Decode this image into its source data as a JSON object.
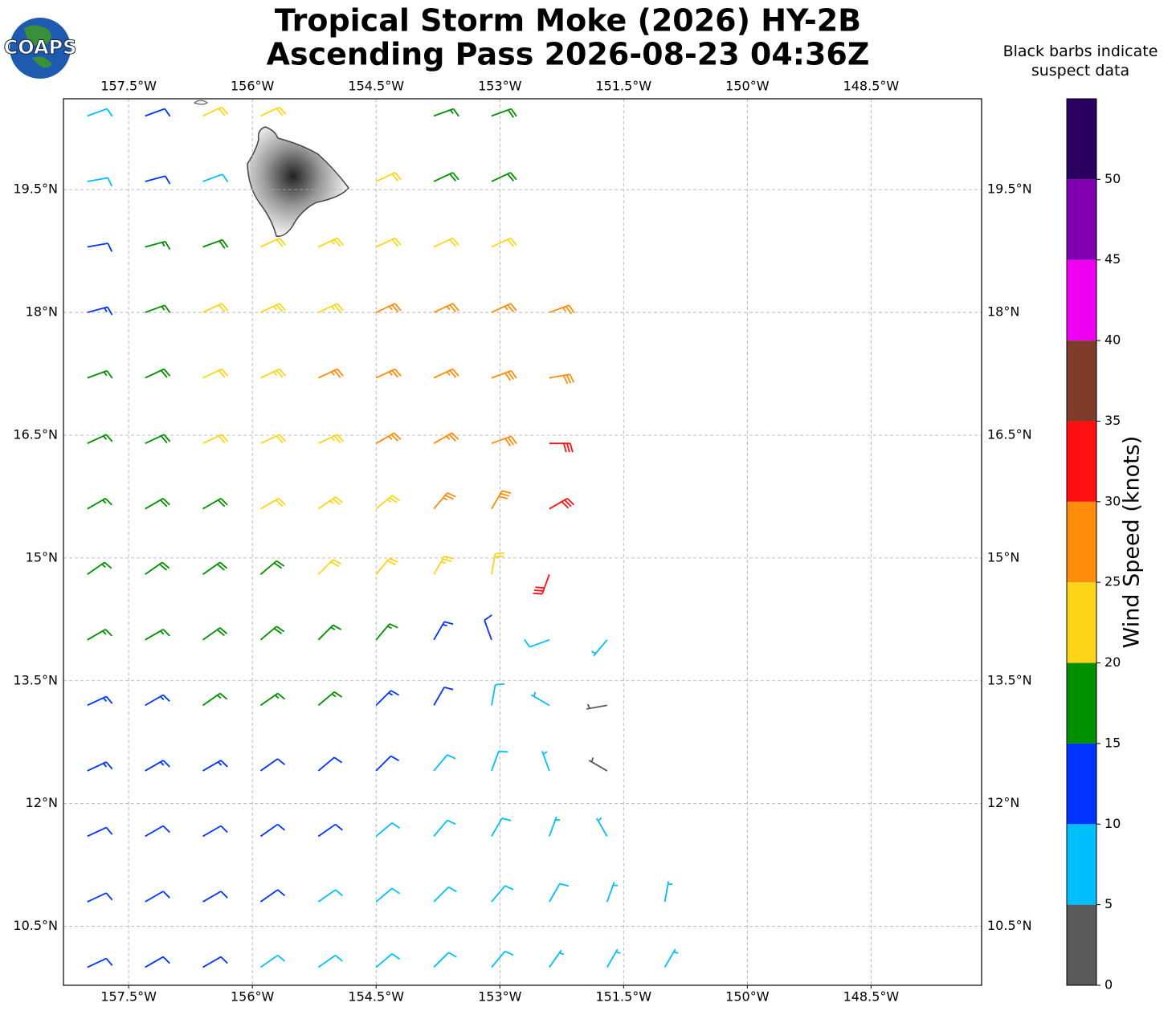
{
  "chart_data": {
    "type": "barbs",
    "title": "Tropical Storm Moke (2026) HY-2B",
    "subtitle": "Ascending Pass 2026-08-23 04:36Z",
    "logo": "COAPS",
    "note": "Black barbs indicate suspect data",
    "xlim": [
      -158.29,
      -147.16
    ],
    "ylim": [
      9.78,
      20.61
    ],
    "xticks": [
      {
        "value": -157.5,
        "label": "157.5°W"
      },
      {
        "value": -156,
        "label": "156°W"
      },
      {
        "value": -154.5,
        "label": "154.5°W"
      },
      {
        "value": -153,
        "label": "153°W"
      },
      {
        "value": -151.5,
        "label": "151.5°W"
      },
      {
        "value": -150,
        "label": "150°W"
      },
      {
        "value": -148.5,
        "label": "148.5°W"
      }
    ],
    "yticks": [
      {
        "value": 10.5,
        "label": "10.5°N"
      },
      {
        "value": 12,
        "label": "12°N"
      },
      {
        "value": 13.5,
        "label": "13.5°N"
      },
      {
        "value": 15,
        "label": "15°N"
      },
      {
        "value": 16.5,
        "label": "16.5°N"
      },
      {
        "value": 18,
        "label": "18°N"
      },
      {
        "value": 19.5,
        "label": "19.5°N"
      }
    ],
    "grid": true,
    "wind": {
      "lon": [
        -158.0,
        -157.3,
        -156.6,
        -155.9,
        -155.2,
        -154.5,
        -153.8,
        -153.1,
        -152.4,
        -151.7,
        -151.0
      ],
      "lat": [
        20.4,
        19.6,
        18.8,
        18.0,
        17.2,
        16.4,
        15.6,
        14.8,
        14.0,
        13.2,
        12.4,
        11.6,
        10.8,
        10.0
      ],
      "speed": [
        [
          8,
          12,
          20,
          22,
          null,
          null,
          15,
          18,
          null,
          null,
          null
        ],
        [
          8,
          10,
          8,
          null,
          null,
          20,
          18,
          18,
          null,
          null,
          null
        ],
        [
          12,
          15,
          18,
          22,
          24,
          22,
          22,
          22,
          null,
          null,
          null
        ],
        [
          13,
          17,
          22,
          23,
          24,
          26,
          27,
          27,
          27,
          null,
          null
        ],
        [
          17,
          18,
          22,
          23,
          25,
          26,
          27,
          28,
          28,
          null,
          null
        ],
        [
          17,
          18,
          20,
          22,
          24,
          26,
          27,
          28,
          30,
          null,
          null
        ],
        [
          17,
          18,
          19,
          21,
          23,
          24,
          26,
          28,
          30,
          null,
          null
        ],
        [
          17,
          18,
          19,
          19,
          20,
          22,
          23,
          20,
          30,
          null,
          null
        ],
        [
          15,
          17,
          18,
          18,
          17,
          16,
          14,
          10,
          8,
          7,
          null
        ],
        [
          14,
          14,
          15,
          16,
          15,
          13,
          12,
          9,
          6,
          4,
          null
        ],
        [
          13,
          13,
          13,
          12,
          12,
          10,
          9,
          8,
          6,
          4,
          null
        ],
        [
          12,
          12,
          12,
          11,
          10,
          9,
          8,
          8,
          7,
          5,
          null
        ],
        [
          12,
          12,
          11,
          10,
          9,
          8,
          8,
          8,
          8,
          7,
          7
        ],
        [
          11,
          11,
          10,
          9,
          8,
          8,
          8,
          8,
          7,
          7,
          7
        ]
      ],
      "direction": [
        [
          70,
          70,
          65,
          65,
          null,
          null,
          70,
          70,
          null,
          null,
          null
        ],
        [
          80,
          75,
          70,
          null,
          null,
          65,
          65,
          65,
          null,
          null,
          null
        ],
        [
          80,
          75,
          70,
          65,
          65,
          65,
          65,
          65,
          null,
          null,
          null
        ],
        [
          75,
          70,
          65,
          65,
          65,
          65,
          65,
          65,
          70,
          null,
          null
        ],
        [
          70,
          65,
          65,
          65,
          65,
          65,
          65,
          70,
          80,
          null,
          null
        ],
        [
          65,
          65,
          65,
          65,
          65,
          60,
          60,
          70,
          90,
          null,
          null
        ],
        [
          60,
          60,
          60,
          60,
          55,
          50,
          40,
          30,
          60,
          null,
          null
        ],
        [
          55,
          55,
          55,
          50,
          45,
          40,
          30,
          10,
          200,
          null,
          null
        ],
        [
          60,
          60,
          55,
          50,
          45,
          40,
          30,
          340,
          250,
          220,
          null
        ],
        [
          65,
          60,
          55,
          55,
          50,
          45,
          30,
          10,
          300,
          260,
          null
        ],
        [
          65,
          60,
          60,
          55,
          50,
          45,
          40,
          20,
          340,
          300,
          null
        ],
        [
          65,
          60,
          60,
          55,
          55,
          50,
          40,
          30,
          20,
          330,
          null
        ],
        [
          65,
          60,
          60,
          55,
          55,
          50,
          45,
          40,
          30,
          20,
          10
        ],
        [
          65,
          60,
          60,
          55,
          55,
          50,
          45,
          40,
          35,
          30,
          30
        ]
      ]
    },
    "colorbar": {
      "levels": [
        0,
        5,
        10,
        15,
        20,
        25,
        30,
        35,
        40,
        45,
        50,
        55
      ],
      "colors": [
        "#595959",
        "#00bfff",
        "#0033ff",
        "#009000",
        "#ffd51a",
        "#ff8c0a",
        "#ff1010",
        "#803c2a",
        "#f000f0",
        "#8000b0",
        "#2a0060"
      ],
      "ticks": [
        0,
        5,
        10,
        15,
        20,
        25,
        30,
        35,
        40,
        45,
        50
      ],
      "label": "Wind Speed (knots)"
    }
  }
}
